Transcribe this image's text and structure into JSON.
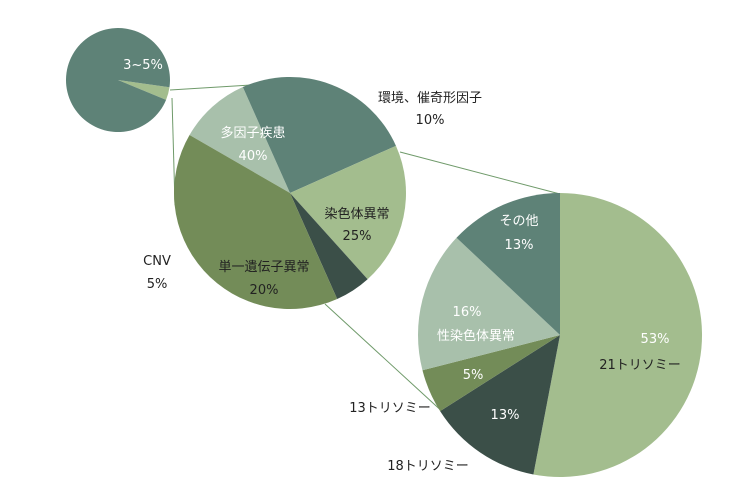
{
  "chart_data": [
    {
      "type": "pie",
      "slices": [
        {
          "label": "3~5%",
          "value": 4,
          "color": "#a3bd8e"
        },
        {
          "label": "",
          "value": 96,
          "color": "#5e8277"
        }
      ]
    },
    {
      "type": "pie",
      "slices": [
        {
          "label": "環境、催奇形因子",
          "value_label": "10%",
          "value": 10,
          "color": "#a8c0ab"
        },
        {
          "label": "染色体異常",
          "value_label": "25%",
          "value": 25,
          "color": "#5e8277"
        },
        {
          "label": "単一遺伝子異常",
          "value_label": "20%",
          "value": 20,
          "color": "#a3bd8e"
        },
        {
          "label": "CNV",
          "value_label": "5%",
          "value": 5,
          "color": "#3b4f48"
        },
        {
          "label": "多因子疾患",
          "value_label": "40%",
          "value": 40,
          "color": "#738c58"
        }
      ]
    },
    {
      "type": "pie",
      "slices": [
        {
          "label": "21トリソミー",
          "value_label": "53%",
          "value": 53,
          "color": "#a3bd8e"
        },
        {
          "label": "18トリソミー",
          "value_label": "13%",
          "value": 13,
          "color": "#3b4f48"
        },
        {
          "label": "13トリソミー",
          "value_label": "5%",
          "value": 5,
          "color": "#738c58"
        },
        {
          "label": "性染色体異常",
          "value_label": "16%",
          "value": 16,
          "color": "#a8c0ab"
        },
        {
          "label": "その他",
          "value_label": "13%",
          "value": 13,
          "color": "#5e8277"
        }
      ]
    }
  ],
  "connector_color": "#6f9a6a"
}
